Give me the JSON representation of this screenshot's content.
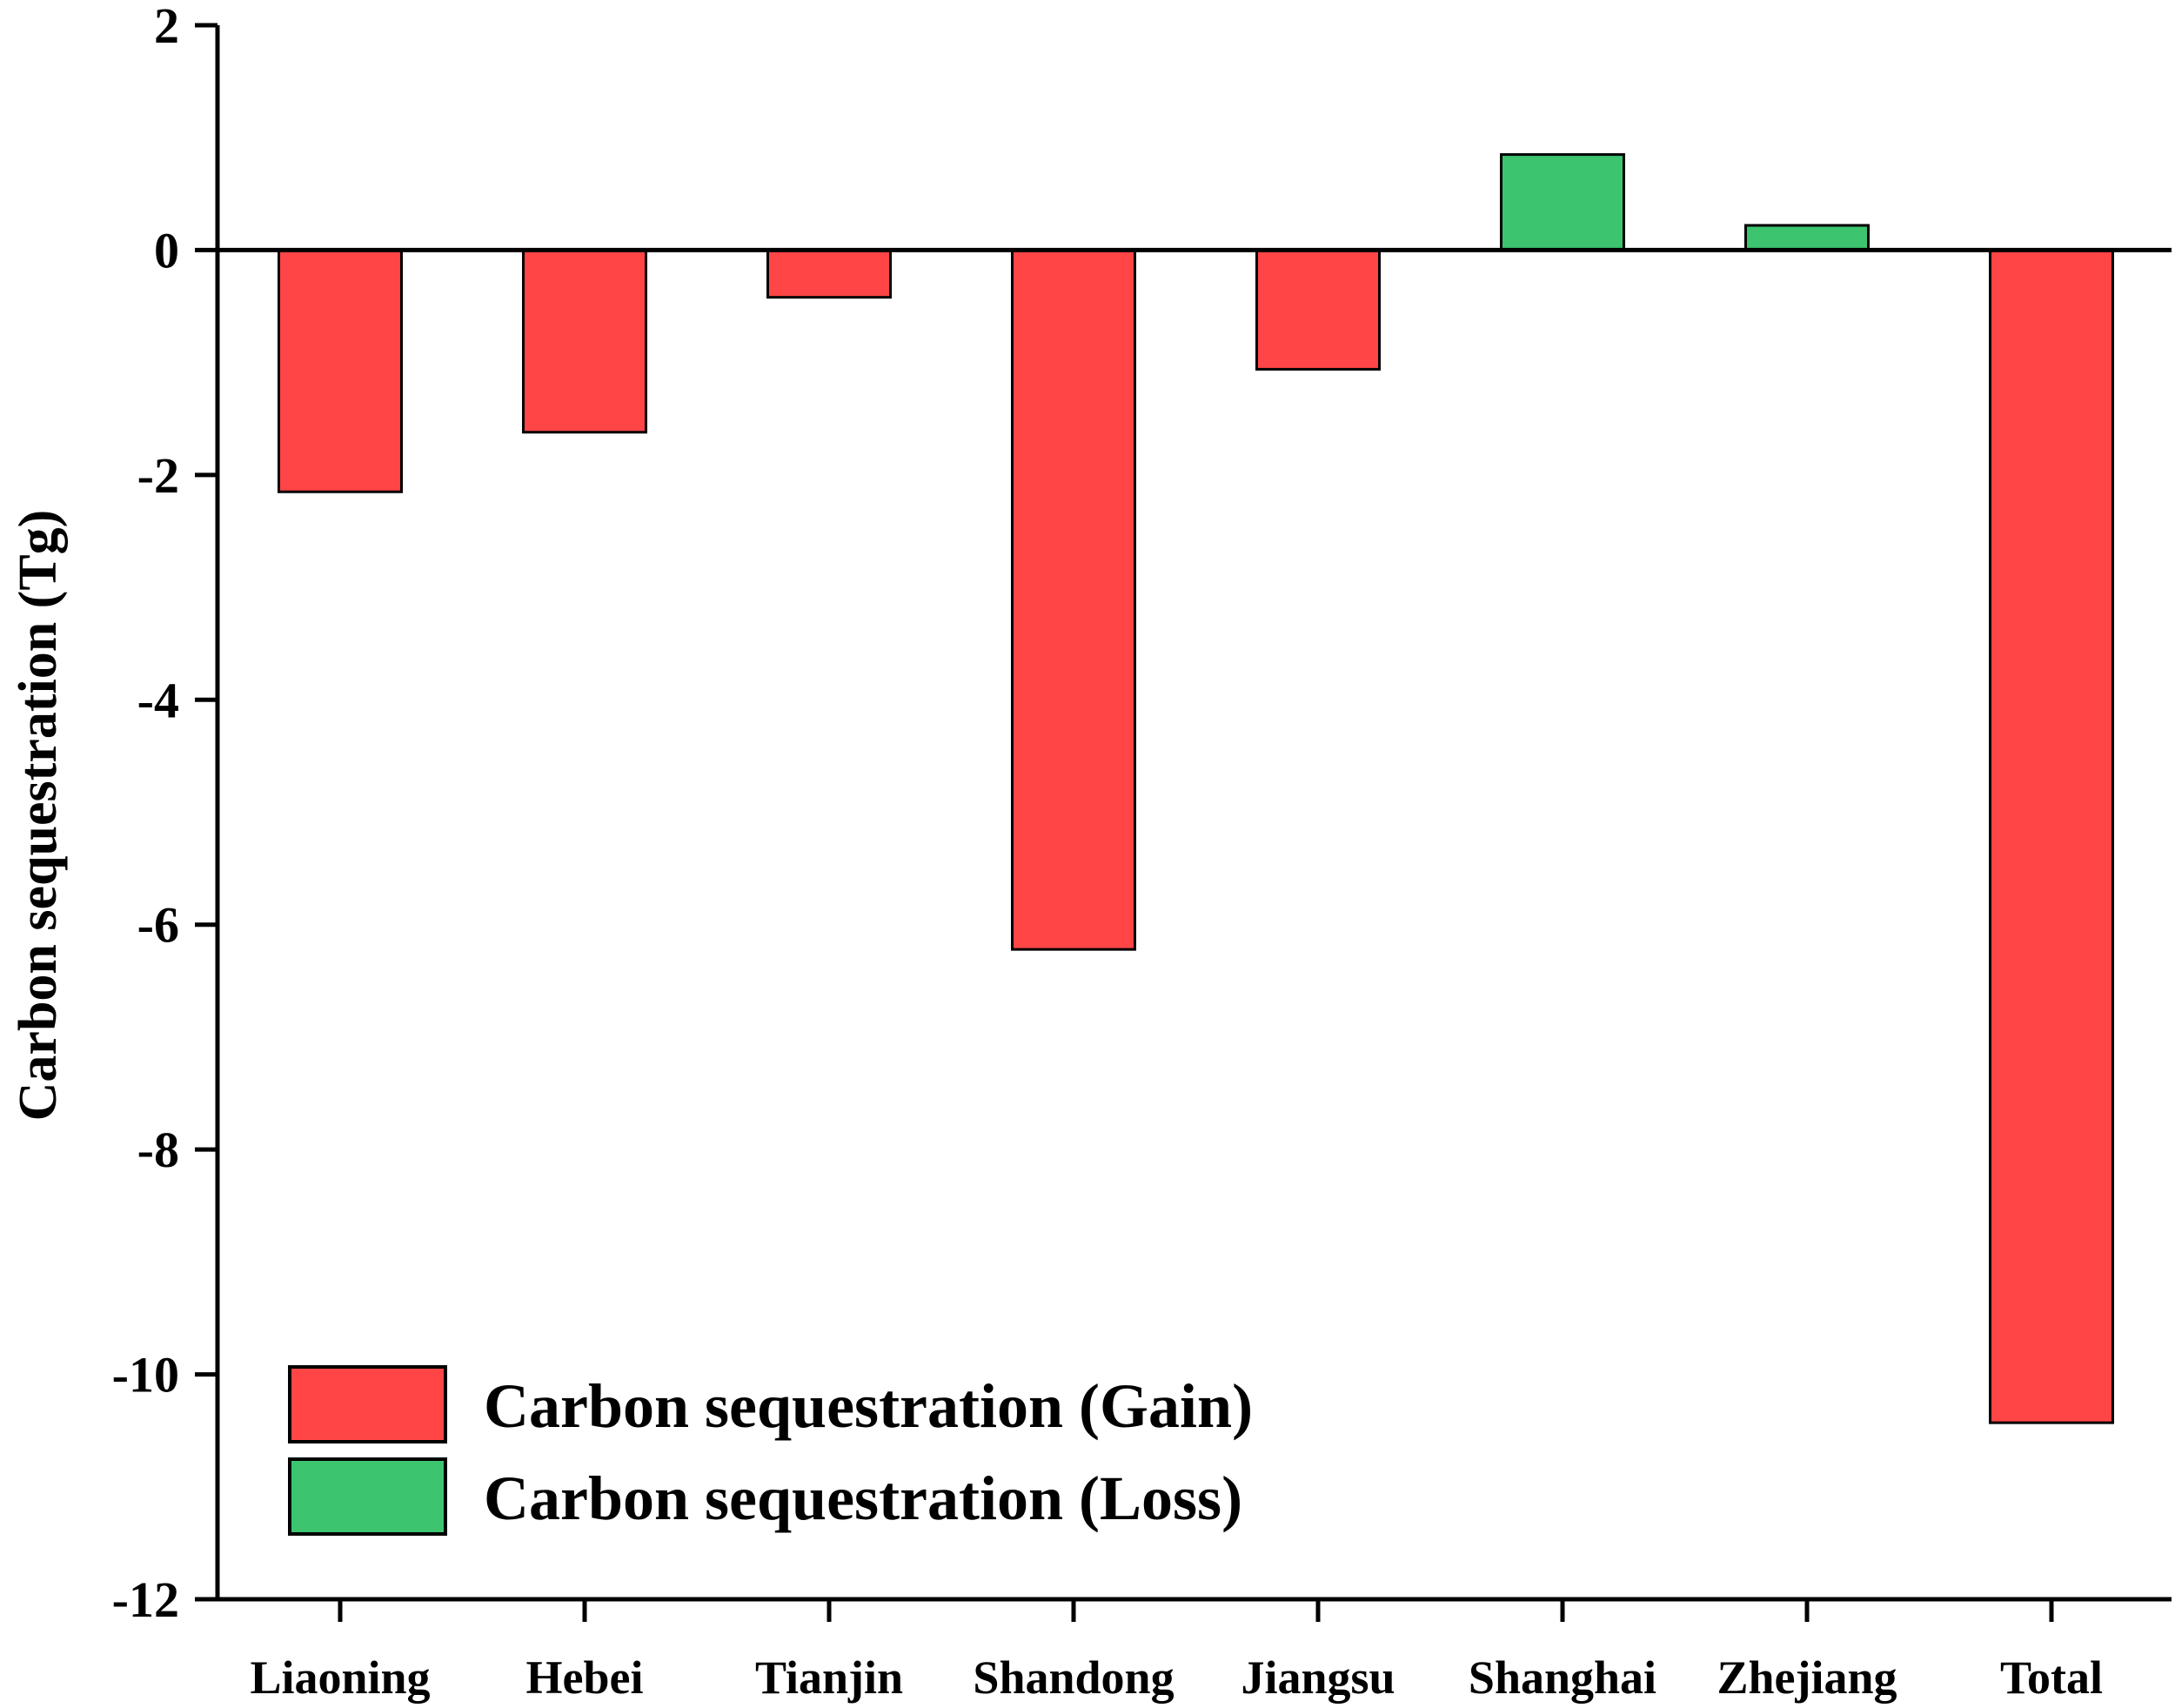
{
  "colors": {
    "gain": "#ff4545",
    "loss": "#3cc46f",
    "axis": "#000000",
    "background": "#ffffff"
  },
  "chart_data": {
    "type": "bar",
    "categories": [
      "Liaoning",
      "Hebei",
      "Tianjin",
      "Shandong",
      "Jiangsu",
      "Shanghai",
      "Zhejiang",
      "Total"
    ],
    "values": [
      -2.15,
      -1.62,
      -0.42,
      -6.22,
      -1.06,
      0.85,
      0.22,
      -10.43
    ],
    "bar_series": [
      "gain",
      "gain",
      "gain",
      "gain",
      "gain",
      "loss",
      "loss",
      "gain"
    ],
    "series": [
      {
        "key": "gain",
        "name": "Carbon sequestration (Gain)",
        "color": "#ff4545"
      },
      {
        "key": "loss",
        "name": "Carbon sequestration (Loss)",
        "color": "#3cc46f"
      }
    ],
    "ylabel": "Carbon sequestration (Tg)",
    "xlabel": "",
    "ylim": [
      -12,
      2
    ],
    "yticks": [
      2,
      0,
      -2,
      -4,
      -6,
      -8,
      -10,
      -12
    ],
    "ytick_labels": [
      "2",
      "0",
      "-2",
      "-4",
      "-6",
      "-8",
      "-10",
      "-12"
    ],
    "grid": false,
    "legend_position": "bottom-left"
  }
}
